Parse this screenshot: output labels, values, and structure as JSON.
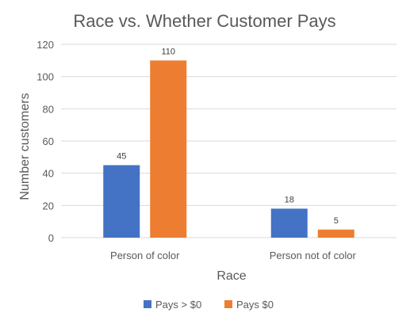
{
  "chart_data": {
    "type": "bar",
    "title": "Race vs. Whether Customer Pays",
    "xlabel": "Race",
    "ylabel": "Number customers",
    "categories": [
      "Person of color",
      "Person not of color"
    ],
    "series": [
      {
        "name": "Pays > $0",
        "values": [
          45,
          18
        ],
        "color": "#4472C4"
      },
      {
        "name": "Pays $0",
        "values": [
          110,
          5
        ],
        "color": "#ED7D31"
      }
    ],
    "ylim": [
      0,
      120
    ],
    "yticks": [
      0,
      20,
      40,
      60,
      80,
      100,
      120
    ],
    "grid": true,
    "legend": "bottom",
    "data_labels": true
  }
}
